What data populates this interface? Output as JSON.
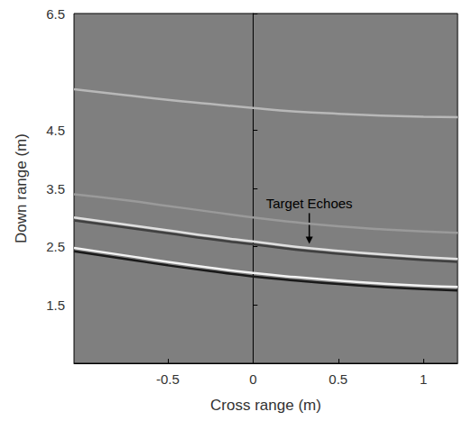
{
  "chart_data": {
    "type": "line",
    "x_label": "Cross range (m)",
    "y_label": "Down range (m)",
    "xlim": [
      -1.05,
      1.2
    ],
    "xticks": [
      -0.5,
      0,
      0.5,
      1
    ],
    "ylim": [
      0.5,
      6.5
    ],
    "yticks": [
      1.5,
      2.5,
      3.5,
      4.5,
      6.5
    ],
    "grid": false,
    "line_style": "solid",
    "x": [
      -1.05,
      -0.75,
      -0.5,
      -0.25,
      0,
      0.25,
      0.5,
      0.75,
      1.0,
      1.2
    ],
    "series": [
      {
        "color": "#b8b8b8",
        "values": [
          5.2,
          5.1,
          5.02,
          4.95,
          4.88,
          4.82,
          4.78,
          4.75,
          4.73,
          4.72
        ]
      },
      {
        "color": "#9a9a9a",
        "values": [
          3.4,
          3.3,
          3.2,
          3.1,
          3.0,
          2.92,
          2.85,
          2.8,
          2.76,
          2.74
        ]
      },
      {
        "color": "#e0e0e0",
        "values": [
          3.0,
          2.88,
          2.78,
          2.68,
          2.59,
          2.5,
          2.43,
          2.37,
          2.32,
          2.29
        ]
      },
      {
        "color": "#404040",
        "values": [
          2.95,
          2.83,
          2.73,
          2.63,
          2.54,
          2.45,
          2.38,
          2.32,
          2.27,
          2.24
        ]
      },
      {
        "color": "#f2f2f2",
        "values": [
          2.48,
          2.35,
          2.24,
          2.14,
          2.05,
          1.98,
          1.92,
          1.87,
          1.83,
          1.81
        ]
      },
      {
        "color": "#1a1a1a",
        "values": [
          2.42,
          2.29,
          2.18,
          2.08,
          1.99,
          1.92,
          1.86,
          1.81,
          1.77,
          1.75
        ]
      }
    ],
    "annotations": [
      {
        "text": "Target Echoes",
        "x": 0.33,
        "y": 2.55
      }
    ]
  }
}
